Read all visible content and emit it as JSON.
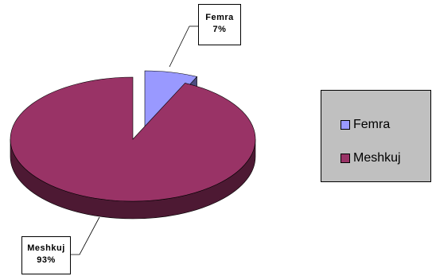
{
  "chart_data": {
    "type": "pie",
    "title": "",
    "style": "3d-exploded",
    "slices": [
      {
        "label": "Femra",
        "value": 7,
        "value_label": "7%",
        "color": "#9999ff",
        "side_color": "#4d4d80"
      },
      {
        "label": "Meshkuj",
        "value": 93,
        "value_label": "93%",
        "color": "#993366",
        "side_color": "#4d1933"
      }
    ],
    "legend": {
      "position": "right",
      "entries": [
        "Femra",
        "Meshkuj"
      ]
    }
  }
}
